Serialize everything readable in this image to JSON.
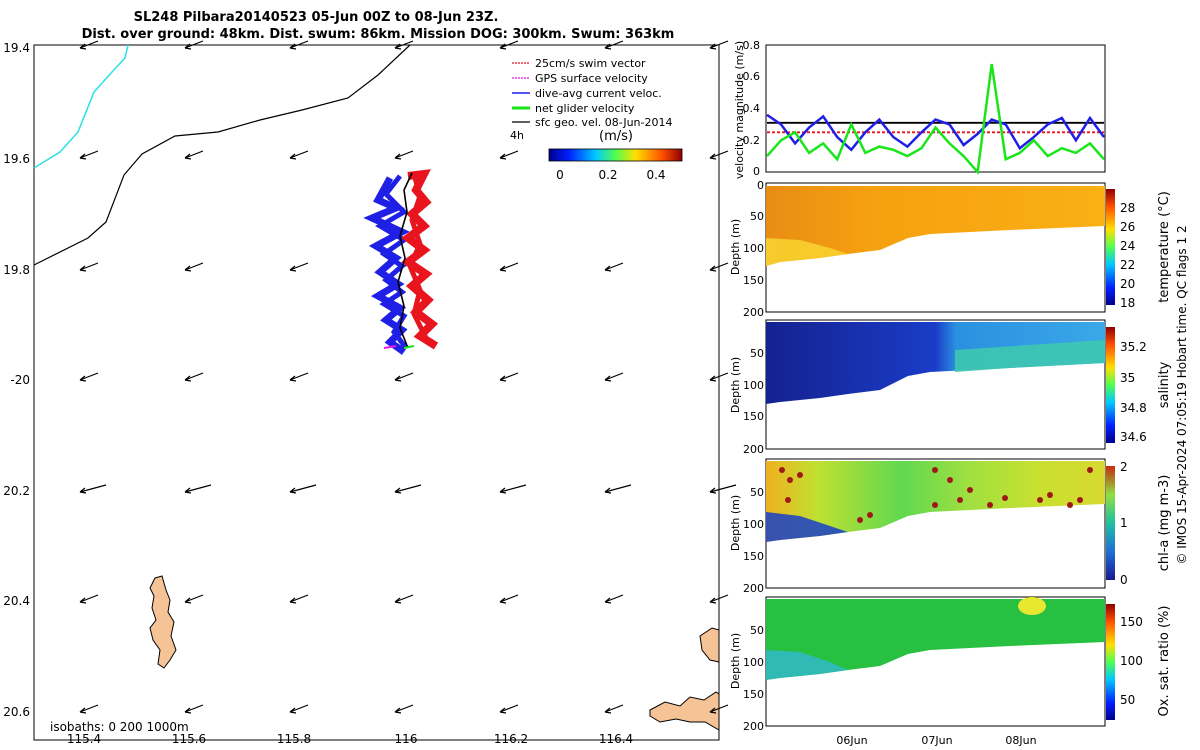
{
  "title": {
    "line1": "SL248 Pilbara20140523 05-Jun 00Z to 08-Jun 23Z.",
    "line2": "Dist. over ground: 48km. Dist. swum: 86km. Mission DOG: 300km. Swum: 363km"
  },
  "map": {
    "lon_ticks": [
      "115.4",
      "115.6",
      "115.8",
      "116",
      "116.2",
      "116.4"
    ],
    "lat_ticks": [
      "19.4",
      "19.6",
      "19.8",
      "-20",
      "20.2",
      "20.4",
      "20.6"
    ],
    "legend": [
      {
        "label": "25cm/s swim vector",
        "color": "#e8141e"
      },
      {
        "label": "GPS surface velocity",
        "color": "#e619e6"
      },
      {
        "label": "dive-avg current veloc.",
        "color": "#1f1fe6"
      },
      {
        "label": "net glider velocity",
        "color": "#19e619"
      },
      {
        "label": "sfc geo. vel. 08-Jun-2014",
        "color": "#000000"
      }
    ],
    "interval_label": "4h",
    "colorbar": {
      "unit": "(m/s)",
      "ticks": [
        "0",
        "0.2",
        "0.4"
      ]
    },
    "isobaths_label": "isobaths: 0   200  1000m",
    "colors": {
      "land": "#f5c396",
      "shallow_isobath": "#33e0e6",
      "deep_isobath": "#000000"
    }
  },
  "velocity_panel": {
    "ylabel": "velocity magnitude (m/s)",
    "yticks": [
      "0",
      "0.2",
      "0.4",
      "0.6",
      "0.8"
    ]
  },
  "sections": [
    {
      "id": "temperature",
      "ylabel": "Depth (m)",
      "yticks": [
        "0",
        "50",
        "100",
        "150",
        "200"
      ],
      "cbar_label": "temperature (°C)",
      "cbar_ticks": [
        "28",
        "26",
        "24",
        "22",
        "20",
        "18"
      ]
    },
    {
      "id": "salinity",
      "ylabel": "Depth (m)",
      "yticks": [
        "50",
        "100",
        "150",
        "200"
      ],
      "cbar_label": "salinity",
      "cbar_ticks": [
        "35.2",
        "35",
        "34.8",
        "34.6"
      ]
    },
    {
      "id": "chla",
      "ylabel": "Depth (m)",
      "yticks": [
        "50",
        "100",
        "150",
        "200"
      ],
      "cbar_label": "chl-a (mg m-3)",
      "cbar_ticks": [
        "2",
        "1",
        "0"
      ]
    },
    {
      "id": "oxygen",
      "ylabel": "Depth (m)",
      "yticks": [
        "50",
        "100",
        "150",
        "200"
      ],
      "cbar_label": "Ox. sat. ratio (%)",
      "cbar_ticks": [
        "150",
        "100",
        "50"
      ]
    }
  ],
  "time_ticks": [
    "06Jun",
    "07Jun",
    "08Jun"
  ],
  "side_note": "© IMOS 15-Apr-2024 07:05:19 Hobart time. QC flags 1  2",
  "chart_data": [
    {
      "type": "line",
      "title": "",
      "xlabel": "",
      "ylabel": "velocity magnitude (m/s)",
      "ylim": [
        0,
        0.8
      ],
      "x_ticks": [
        "06Jun",
        "07Jun",
        "08Jun"
      ],
      "series": [
        {
          "color": "#000000",
          "values": [
            0.31,
            0.31,
            0.31,
            0.31,
            0.31,
            0.31,
            0.31,
            0.31,
            0.31,
            0.31,
            0.31,
            0.31,
            0.31,
            0.31,
            0.31,
            0.31,
            0.31,
            0.31,
            0.31,
            0.31,
            0.31,
            0.31,
            0.31,
            0.31,
            0.31
          ]
        },
        {
          "color": "#e8141e",
          "values": [
            0.25,
            0.25,
            0.25,
            0.25,
            0.25,
            0.25,
            0.25,
            0.25,
            0.25,
            0.25,
            0.25,
            0.25,
            0.25,
            0.25,
            0.25,
            0.25,
            0.25,
            0.25,
            0.25,
            0.25,
            0.25,
            0.25,
            0.25,
            0.25,
            0.25
          ]
        },
        {
          "color": "#1f1fe6",
          "values": [
            0.36,
            0.3,
            0.18,
            0.28,
            0.35,
            0.22,
            0.14,
            0.25,
            0.33,
            0.22,
            0.16,
            0.25,
            0.33,
            0.3,
            0.17,
            0.24,
            0.33,
            0.3,
            0.15,
            0.22,
            0.3,
            0.34,
            0.2,
            0.34,
            0.22
          ]
        },
        {
          "color": "#19e619",
          "values": [
            0.1,
            0.2,
            0.25,
            0.12,
            0.18,
            0.08,
            0.3,
            0.12,
            0.16,
            0.14,
            0.1,
            0.15,
            0.28,
            0.18,
            0.1,
            0.0,
            0.68,
            0.08,
            0.12,
            0.2,
            0.1,
            0.15,
            0.12,
            0.18,
            0.08
          ]
        }
      ]
    },
    {
      "type": "heatmap",
      "title": "",
      "ylabel": "Depth (m)",
      "ylim": [
        200,
        0
      ],
      "colorbar_label": "temperature (°C)",
      "colorbar_range": [
        17,
        29
      ]
    },
    {
      "type": "heatmap",
      "title": "",
      "ylabel": "Depth (m)",
      "ylim": [
        200,
        0
      ],
      "colorbar_label": "salinity",
      "colorbar_range": [
        34.5,
        35.3
      ]
    },
    {
      "type": "heatmap",
      "title": "",
      "ylabel": "Depth (m)",
      "ylim": [
        200,
        0
      ],
      "colorbar_label": "chl-a (mg m-3)",
      "colorbar_range": [
        0,
        2
      ]
    },
    {
      "type": "heatmap",
      "title": "",
      "ylabel": "Depth (m)",
      "ylim": [
        200,
        0
      ],
      "colorbar_label": "Ox. sat. ratio (%)",
      "colorbar_range": [
        20,
        175
      ]
    }
  ]
}
